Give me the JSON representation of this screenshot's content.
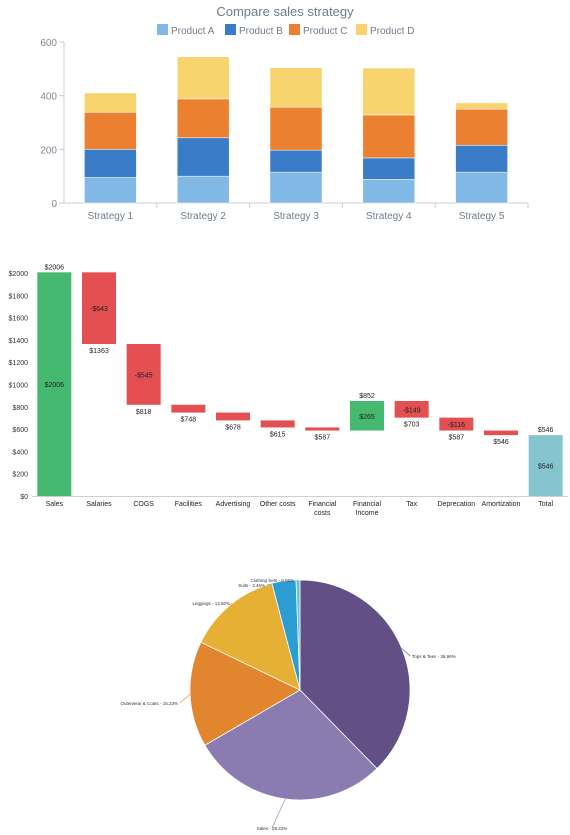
{
  "chart_data": [
    {
      "type": "bar",
      "stacked": true,
      "title": "Compare sales strategy",
      "categories": [
        "Strategy 1",
        "Strategy 2",
        "Strategy 3",
        "Strategy 4",
        "Strategy 5"
      ],
      "series": [
        {
          "name": "Product A",
          "color": "#82b8e6",
          "values": [
            95,
            100,
            115,
            88,
            115
          ]
        },
        {
          "name": "Product B",
          "color": "#3b7cc9",
          "values": [
            105,
            143,
            82,
            80,
            100
          ]
        },
        {
          "name": "Product C",
          "color": "#ea8030",
          "values": [
            138,
            145,
            160,
            160,
            135
          ]
        },
        {
          "name": "Product D",
          "color": "#f7d46e",
          "values": [
            72,
            157,
            147,
            175,
            23
          ]
        }
      ],
      "ylim": [
        0,
        600
      ],
      "yticks": [
        "0",
        "200",
        "400",
        "600"
      ],
      "legend": "top",
      "grid": false
    },
    {
      "type": "waterfall",
      "categories": [
        "Sales",
        "Salaries",
        "COGS",
        "Facilities",
        "Advertising",
        "Other costs",
        "Financial costs",
        "Financial Income",
        "Tax",
        "Deprecation",
        "Amortization",
        "Total"
      ],
      "values": [
        2006,
        -643,
        -545,
        -70,
        -70,
        -63,
        -28,
        265,
        -149,
        -116,
        -41,
        546
      ],
      "kinds": [
        "total",
        "decrease",
        "decrease",
        "decrease",
        "decrease",
        "decrease",
        "decrease",
        "increase",
        "decrease",
        "decrease",
        "decrease",
        "total"
      ],
      "top_labels": [
        "$2006",
        "",
        "",
        "",
        "",
        "",
        "",
        "$852",
        "",
        "",
        "",
        "$546"
      ],
      "inner_labels": [
        "$2006",
        "-$643",
        "-$545",
        "",
        "",
        "",
        "",
        "$265",
        "-$149",
        "-$116",
        "",
        "$546"
      ],
      "bottom_labels": [
        "",
        "$1363",
        "$818",
        "$748",
        "$678",
        "$615",
        "$587",
        "",
        "$703",
        "$587",
        "$546",
        ""
      ],
      "ylim": [
        0,
        2000
      ],
      "yticks": [
        "$0",
        "$200",
        "$400",
        "$600",
        "$800",
        "$1000",
        "$1200",
        "$1400",
        "$1600",
        "$1800",
        "$2000"
      ],
      "colors": {
        "total_first": "#45b96f",
        "decrease": "#e44f52",
        "increase": "#45b96f",
        "total_last": "#86c4cf"
      }
    },
    {
      "type": "pie",
      "slices": [
        {
          "label": "Tops & Tees - 36.96%",
          "value": 36.96,
          "color": "#614f86"
        },
        {
          "label": "Sales - 28.42%",
          "value": 28.42,
          "color": "#8a7bb1"
        },
        {
          "label": "Outerwear & Coats - 15.23%",
          "value": 15.23,
          "color": "#e1862f"
        },
        {
          "label": "Leggings - 13.50%",
          "value": 13.5,
          "color": "#e6b034"
        },
        {
          "label": "Suits - 3.46%",
          "value": 3.46,
          "color": "#2b9dd2"
        },
        {
          "label": "Clothing Sets - 0.56%",
          "value": 0.56,
          "color": "#63c2d8"
        }
      ]
    }
  ]
}
